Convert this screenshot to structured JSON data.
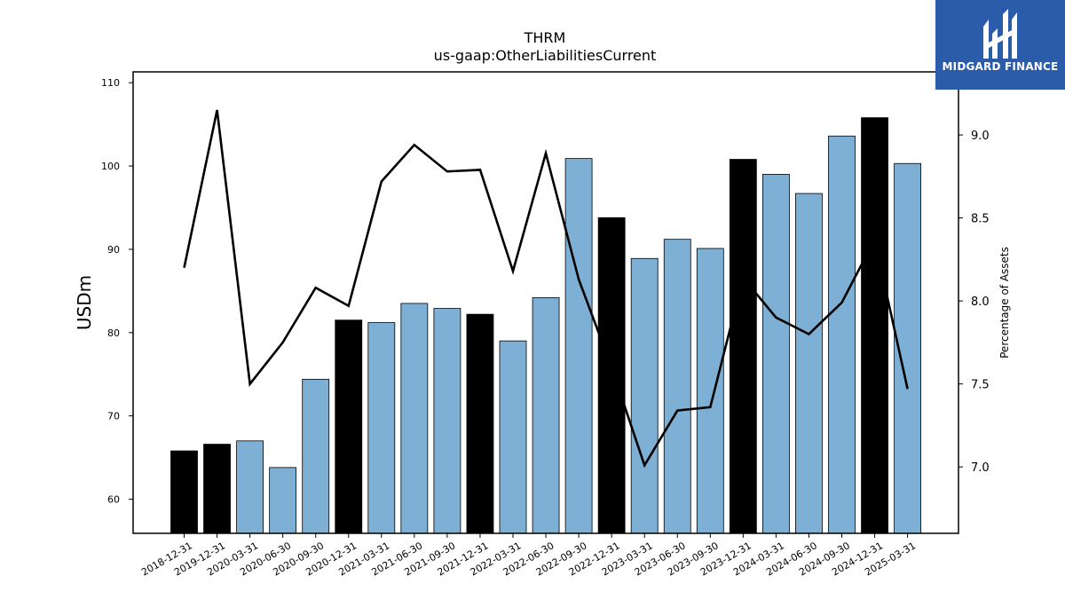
{
  "chart_data": {
    "type": "bar",
    "title": "THRM",
    "subtitle": "us-gaap:OtherLiabilitiesCurrent",
    "ylabel": "USDm",
    "y2label": "Percentage of Assets",
    "ylim": [
      55.9,
      111.3
    ],
    "y2lim": [
      6.6,
      9.38
    ],
    "yticks": [
      60,
      70,
      80,
      90,
      100,
      110
    ],
    "y2ticks": [
      7.0,
      7.5,
      8.0,
      8.5,
      9.0
    ],
    "categories": [
      "2018-12-31",
      "2019-12-31",
      "2020-03-31",
      "2020-06-30",
      "2020-09-30",
      "2020-12-31",
      "2021-03-31",
      "2021-06-30",
      "2021-09-30",
      "2021-12-31",
      "2022-03-31",
      "2022-06-30",
      "2022-09-30",
      "2022-12-31",
      "2023-03-31",
      "2023-06-30",
      "2023-09-30",
      "2023-12-31",
      "2024-03-31",
      "2024-06-30",
      "2024-09-30",
      "2024-12-31",
      "2025-03-31"
    ],
    "series": [
      {
        "type": "bar",
        "values": [
          65.8,
          66.6,
          67.0,
          63.8,
          74.4,
          81.5,
          81.2,
          83.5,
          82.9,
          82.2,
          79.0,
          84.2,
          100.9,
          93.8,
          88.9,
          91.2,
          90.1,
          100.8,
          99.0,
          96.7,
          103.6,
          105.8,
          100.3
        ],
        "annual": [
          true,
          true,
          false,
          false,
          false,
          true,
          false,
          false,
          false,
          true,
          false,
          false,
          false,
          true,
          false,
          false,
          false,
          true,
          false,
          false,
          false,
          true,
          false
        ]
      },
      {
        "type": "line",
        "axis": "right",
        "values": [
          8.2,
          9.15,
          7.5,
          7.75,
          8.08,
          7.97,
          8.72,
          8.94,
          8.78,
          8.79,
          8.18,
          8.89,
          8.13,
          7.6,
          7.01,
          7.34,
          7.36,
          8.14,
          7.9,
          7.8,
          7.99,
          8.37,
          7.47
        ]
      }
    ],
    "colors": {
      "annual_bar": "#000000",
      "quarter_bar": "#7eb0d5",
      "line": "#000000"
    },
    "grid": false
  },
  "logo": {
    "text": "MIDGARD FINANCE",
    "background": "#2a5caa"
  }
}
